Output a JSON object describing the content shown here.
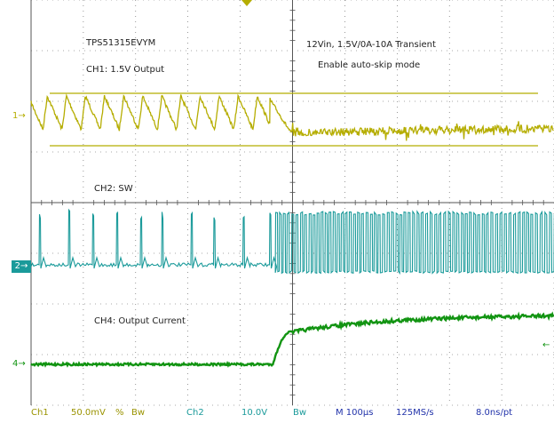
{
  "annotations": {
    "device": "TPS51315EVYM",
    "ch1_label": "CH1: 1.5V Output",
    "ch2_label": "CH2: SW",
    "ch4_label": "CH4: Output Current",
    "condition_line1": "12Vin, 1.5V/0A-10A Transient",
    "condition_line2": "Enable auto-skip mode"
  },
  "markers": {
    "ch1": "1",
    "ch2": "2",
    "ch4": "4"
  },
  "status": {
    "ch1_name": "Ch1",
    "ch1_scale": "50.0mV",
    "ch1_coupling": "%",
    "ch1_bw": "Bw",
    "ch2_name": "Ch2",
    "ch2_scale": "10.0V",
    "ch2_bw": "Bw",
    "timebase": "M 100µs",
    "sample_rate": "125MS/s",
    "resolution": "8.0ns/pt"
  },
  "colors": {
    "ch1": "#b5ad00",
    "ch2": "#1a9a9a",
    "ch4": "#129412",
    "grid": "#555555"
  },
  "chart_data": {
    "type": "line",
    "time_scale": "100us/div",
    "transient_div": 4.67,
    "series": [
      {
        "name": "CH1: 1.5V Output",
        "before": "ripple",
        "after": "noisy-flat"
      },
      {
        "name": "CH2: SW",
        "before": "sparse-pulses",
        "after": "dense-pulses"
      },
      {
        "name": "CH4: Output Current",
        "from": "0A",
        "to": "10A"
      }
    ]
  }
}
